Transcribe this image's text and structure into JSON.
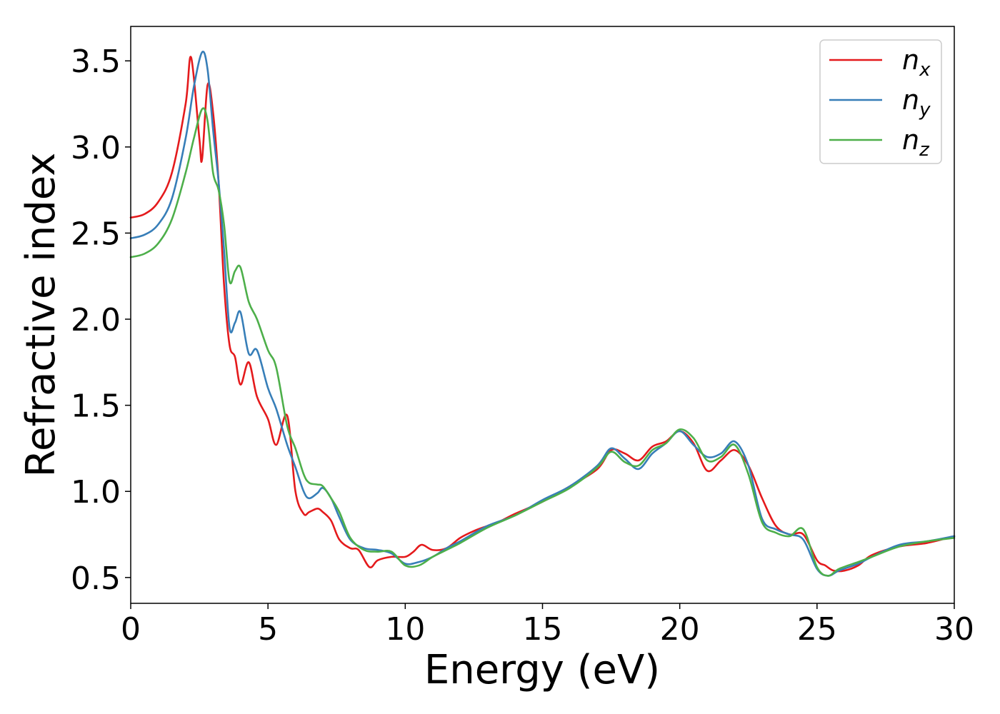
{
  "chart_data": {
    "type": "line",
    "xlabel": "Energy (eV)",
    "ylabel": "Refractive index",
    "xlim": [
      0,
      30
    ],
    "ylim": [
      0.35,
      3.7
    ],
    "xticks": [
      0,
      5,
      10,
      15,
      20,
      25,
      30
    ],
    "xtick_labels": [
      "0",
      "5",
      "10",
      "15",
      "20",
      "25",
      "30"
    ],
    "yticks": [
      0.5,
      1.0,
      1.5,
      2.0,
      2.5,
      3.0,
      3.5
    ],
    "ytick_labels": [
      "0.5",
      "1.0",
      "1.5",
      "2.0",
      "2.5",
      "3.0",
      "3.5"
    ],
    "grid": false,
    "legend_position": "top-right",
    "series": [
      {
        "name": "n",
        "subscript": "x",
        "color": "#e41a1c",
        "x": [
          0,
          0.5,
          1.0,
          1.5,
          2.0,
          2.2,
          2.5,
          2.6,
          2.8,
          3.0,
          3.2,
          3.4,
          3.6,
          3.8,
          4.0,
          4.3,
          4.6,
          5.0,
          5.3,
          5.7,
          6.0,
          6.3,
          6.5,
          6.8,
          7.0,
          7.3,
          7.6,
          8.0,
          8.3,
          8.7,
          9.0,
          9.5,
          10.0,
          10.3,
          10.6,
          11.0,
          11.5,
          12.0,
          12.5,
          13.0,
          13.5,
          14.0,
          15.0,
          16.0,
          17.0,
          17.5,
          18.0,
          18.5,
          19.0,
          19.5,
          20.0,
          20.5,
          21.0,
          21.5,
          22.0,
          22.5,
          23.0,
          23.5,
          24.0,
          24.5,
          25.0,
          25.3,
          25.6,
          26.0,
          26.5,
          27.0,
          28.0,
          29.0,
          30.0
        ],
        "y": [
          2.59,
          2.61,
          2.68,
          2.85,
          3.25,
          3.52,
          3.05,
          2.93,
          3.36,
          3.2,
          2.8,
          2.2,
          1.85,
          1.78,
          1.62,
          1.75,
          1.55,
          1.42,
          1.27,
          1.44,
          1.0,
          0.87,
          0.88,
          0.9,
          0.88,
          0.83,
          0.72,
          0.67,
          0.66,
          0.56,
          0.6,
          0.62,
          0.62,
          0.65,
          0.69,
          0.66,
          0.67,
          0.73,
          0.77,
          0.8,
          0.83,
          0.87,
          0.94,
          1.03,
          1.13,
          1.24,
          1.22,
          1.18,
          1.26,
          1.29,
          1.35,
          1.28,
          1.12,
          1.18,
          1.24,
          1.15,
          0.96,
          0.8,
          0.75,
          0.75,
          0.6,
          0.57,
          0.54,
          0.54,
          0.57,
          0.63,
          0.68,
          0.7,
          0.74
        ]
      },
      {
        "name": "n",
        "subscript": "y",
        "color": "#377eb8",
        "x": [
          0,
          0.5,
          1.0,
          1.5,
          2.0,
          2.3,
          2.6,
          2.8,
          3.0,
          3.2,
          3.4,
          3.6,
          3.8,
          4.0,
          4.3,
          4.6,
          5.0,
          5.3,
          5.7,
          6.0,
          6.3,
          6.5,
          6.8,
          7.0,
          7.3,
          7.6,
          8.0,
          8.5,
          9.0,
          9.5,
          10.0,
          10.5,
          11.0,
          11.5,
          12.0,
          13.0,
          14.0,
          15.0,
          16.0,
          17.0,
          17.5,
          18.0,
          18.5,
          19.0,
          19.5,
          20.0,
          20.5,
          21.0,
          21.5,
          22.0,
          22.5,
          23.0,
          23.5,
          24.0,
          24.5,
          25.0,
          25.4,
          25.8,
          26.5,
          27.0,
          28.0,
          29.0,
          30.0
        ],
        "y": [
          2.47,
          2.49,
          2.55,
          2.7,
          3.05,
          3.35,
          3.55,
          3.45,
          3.1,
          2.8,
          2.4,
          1.95,
          1.98,
          2.04,
          1.8,
          1.82,
          1.6,
          1.48,
          1.27,
          1.14,
          1.0,
          0.96,
          0.99,
          1.02,
          0.96,
          0.85,
          0.72,
          0.67,
          0.66,
          0.64,
          0.58,
          0.59,
          0.62,
          0.67,
          0.71,
          0.8,
          0.86,
          0.95,
          1.03,
          1.15,
          1.25,
          1.19,
          1.13,
          1.22,
          1.28,
          1.35,
          1.27,
          1.2,
          1.22,
          1.29,
          1.15,
          0.84,
          0.78,
          0.75,
          0.72,
          0.55,
          0.51,
          0.54,
          0.58,
          0.62,
          0.69,
          0.71,
          0.74
        ]
      },
      {
        "name": "n",
        "subscript": "z",
        "color": "#4daf4a",
        "x": [
          0,
          0.5,
          1.0,
          1.5,
          2.0,
          2.3,
          2.6,
          2.8,
          3.0,
          3.2,
          3.4,
          3.6,
          3.8,
          4.0,
          4.3,
          4.6,
          5.0,
          5.3,
          5.7,
          6.0,
          6.3,
          6.5,
          6.8,
          7.0,
          7.3,
          7.6,
          8.0,
          8.5,
          9.0,
          9.5,
          10.0,
          10.5,
          11.0,
          11.5,
          12.0,
          13.0,
          14.0,
          15.0,
          16.0,
          17.0,
          17.5,
          18.0,
          18.5,
          19.0,
          19.5,
          20.0,
          20.5,
          21.0,
          21.5,
          22.0,
          22.5,
          23.0,
          23.5,
          24.0,
          24.5,
          25.0,
          25.4,
          25.8,
          26.5,
          27.0,
          28.0,
          29.0,
          30.0
        ],
        "y": [
          2.36,
          2.38,
          2.44,
          2.58,
          2.85,
          3.05,
          3.22,
          3.15,
          2.85,
          2.75,
          2.55,
          2.22,
          2.28,
          2.3,
          2.1,
          2.0,
          1.82,
          1.72,
          1.38,
          1.25,
          1.1,
          1.05,
          1.04,
          1.03,
          0.96,
          0.88,
          0.73,
          0.66,
          0.65,
          0.65,
          0.57,
          0.57,
          0.62,
          0.66,
          0.7,
          0.79,
          0.86,
          0.94,
          1.02,
          1.14,
          1.23,
          1.17,
          1.15,
          1.24,
          1.28,
          1.36,
          1.31,
          1.18,
          1.2,
          1.27,
          1.1,
          0.82,
          0.76,
          0.74,
          0.78,
          0.56,
          0.51,
          0.55,
          0.59,
          0.62,
          0.68,
          0.71,
          0.73
        ]
      }
    ]
  }
}
